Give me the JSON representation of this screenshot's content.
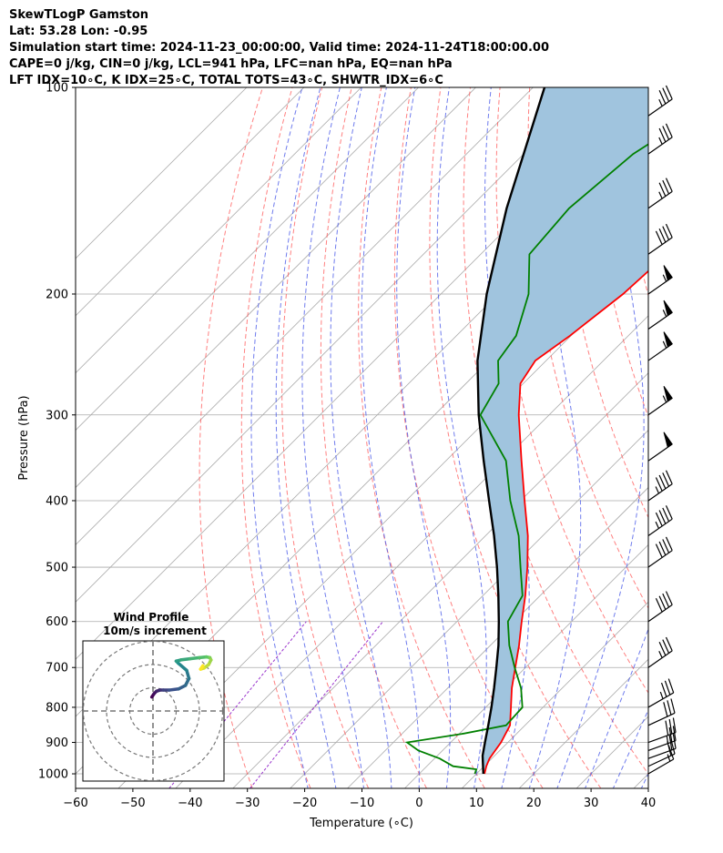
{
  "header": {
    "line1": "SkewTLogP Gamston",
    "line2": "Lat: 53.28   Lon: -0.95",
    "line3": "Simulation start time: 2024-11-23_00:00:00, Valid time: 2024-11-24T18:00:00.00",
    "line4": "CAPE=0 j/kg, CIN=0 j/kg, LCL=941 hPa, LFC=nan hPa, EQ=nan hPa",
    "line5": "LFT IDX=10∘C, K IDX=25∘C, TOTAL TOTS=43∘C, SHWTR_IDX=6∘C"
  },
  "colors": {
    "temperature": "#ff0000",
    "dewpoint": "#008000",
    "parcel": "#000000",
    "fill": "#a0c4de",
    "dry_adiabat": "#ff5555",
    "moist_adiabat": "#4b5be8",
    "mixing_ratio": "#9933cc",
    "isotherm": "#aaaaaa",
    "isobar": "#aaaaaa"
  },
  "chart_data": {
    "type": "line",
    "subtype": "skew-T log-P",
    "xlabel": "Temperature (∘C)",
    "ylabel": "Pressure (hPa)",
    "xlim": [
      -60,
      40
    ],
    "ylim": [
      1050,
      100
    ],
    "y_scale": "log",
    "grid": true,
    "x_ticks": [
      -60,
      -50,
      -40,
      -30,
      -20,
      -10,
      0,
      10,
      20,
      30,
      40
    ],
    "y_ticks": [
      1000,
      900,
      800,
      700,
      600,
      500,
      400,
      300,
      200,
      100
    ],
    "series": [
      {
        "key": "temperature",
        "pressure": [
          1000,
          975,
          950,
          925,
          900,
          850,
          800,
          750,
          700,
          650,
          600,
          550,
          500,
          450,
          400,
          350,
          300,
          270,
          250,
          230,
          200,
          175,
          150,
          125,
          100
        ],
        "temperature": [
          11.4,
          10.4,
          9.6,
          9.2,
          8.8,
          7.4,
          4.4,
          1.2,
          -1.8,
          -5.0,
          -8.7,
          -12.6,
          -17.2,
          -22.6,
          -29.3,
          -36.8,
          -45.3,
          -50.5,
          -51.9,
          -50.2,
          -48.2,
          -47.5,
          -47.3,
          -47.3,
          -47.0
        ]
      },
      {
        "key": "dewpoint",
        "pressure": [
          1000,
          985,
          975,
          950,
          925,
          900,
          875,
          850,
          800,
          750,
          700,
          650,
          600,
          550,
          500,
          450,
          400,
          350,
          300,
          270,
          250,
          230,
          200,
          175,
          150,
          125,
          100
        ],
        "temperature": [
          9.7,
          9.2,
          4.6,
          0.9,
          -4.2,
          -7.6,
          0.4,
          6.7,
          6.4,
          2.8,
          -1.9,
          -6.7,
          -11.1,
          -13.1,
          -18.4,
          -24.2,
          -31.8,
          -39.5,
          -52.0,
          -54.3,
          -58.4,
          -59.6,
          -64.7,
          -71.5,
          -72.6,
          -70.9,
          -64.4
        ]
      },
      {
        "key": "parcel",
        "pressure": [
          1000,
          941,
          900,
          850,
          800,
          750,
          700,
          650,
          600,
          550,
          500,
          450,
          400,
          350,
          300,
          250,
          200,
          150,
          100
        ],
        "temperature": [
          11.2,
          7.9,
          6.0,
          3.6,
          1.0,
          -1.9,
          -5.1,
          -8.6,
          -12.7,
          -17.3,
          -22.5,
          -28.5,
          -35.5,
          -43.4,
          -52.3,
          -62.0,
          -72.0,
          -83.5,
          -98.0
        ]
      }
    ],
    "wind_barbs": [
      {
        "pressure": 1000,
        "speed_kt": 15,
        "dir_deg": 240
      },
      {
        "pressure": 975,
        "speed_kt": 20,
        "dir_deg": 245
      },
      {
        "pressure": 950,
        "speed_kt": 20,
        "dir_deg": 250
      },
      {
        "pressure": 925,
        "speed_kt": 25,
        "dir_deg": 250
      },
      {
        "pressure": 900,
        "speed_kt": 30,
        "dir_deg": 250
      },
      {
        "pressure": 850,
        "speed_kt": 30,
        "dir_deg": 245
      },
      {
        "pressure": 800,
        "speed_kt": 35,
        "dir_deg": 240
      },
      {
        "pressure": 700,
        "speed_kt": 35,
        "dir_deg": 235
      },
      {
        "pressure": 600,
        "speed_kt": 40,
        "dir_deg": 235
      },
      {
        "pressure": 500,
        "speed_kt": 40,
        "dir_deg": 235
      },
      {
        "pressure": 450,
        "speed_kt": 45,
        "dir_deg": 235
      },
      {
        "pressure": 400,
        "speed_kt": 45,
        "dir_deg": 235
      },
      {
        "pressure": 350,
        "speed_kt": 50,
        "dir_deg": 235
      },
      {
        "pressure": 300,
        "speed_kt": 55,
        "dir_deg": 235
      },
      {
        "pressure": 250,
        "speed_kt": 55,
        "dir_deg": 235
      },
      {
        "pressure": 225,
        "speed_kt": 55,
        "dir_deg": 235
      },
      {
        "pressure": 200,
        "speed_kt": 55,
        "dir_deg": 235
      },
      {
        "pressure": 175,
        "speed_kt": 40,
        "dir_deg": 235
      },
      {
        "pressure": 150,
        "speed_kt": 35,
        "dir_deg": 235
      },
      {
        "pressure": 125,
        "speed_kt": 35,
        "dir_deg": 235
      },
      {
        "pressure": 110,
        "speed_kt": 35,
        "dir_deg": 235
      }
    ],
    "inset": {
      "title": "Wind Profile",
      "subtitle": "10m/s increment",
      "type": "hodograph",
      "u": [
        -0.5,
        0.5,
        1.5,
        3.0,
        4.5,
        7.0,
        11.0,
        14.0,
        15.5,
        14.5,
        11.0,
        10.0,
        12.0,
        16.0,
        20.0,
        23.0,
        24.5,
        25.0,
        24.0,
        22.0,
        20.5,
        21.5
      ],
      "v": [
        6.0,
        7.5,
        8.5,
        9.0,
        9.0,
        9.0,
        9.5,
        11.0,
        14.0,
        17.5,
        20.5,
        21.5,
        22.0,
        22.5,
        23.0,
        23.3,
        23.0,
        22.0,
        20.0,
        18.5,
        18.0,
        19.5
      ]
    }
  }
}
